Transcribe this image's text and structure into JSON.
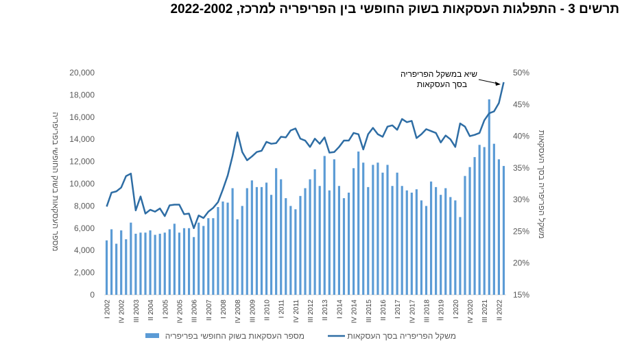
{
  "title": "תרשים 3 - התפלגות העסקאות בשוק החופשי בין הפריפריה למרכז, 2022-2002",
  "colors": {
    "bars": "#5b9bd5",
    "line": "#2e6da4",
    "axis_text": "#595959",
    "axis_line": "#d9d9d9"
  },
  "chart_data": {
    "type": "bar+line",
    "title": "תרשים 3 - התפלגות העסקאות בשוק החופשי בין הפריפריה למרכז, 2022-2002",
    "x_tick_labels": [
      "I 2002",
      "IV 2002",
      "III 2003",
      "II 2004",
      "I 2005",
      "IV 2005",
      "III 2006",
      "II 2007",
      "I 2008",
      "IV 2008",
      "III 2009",
      "II 2010",
      "I 2011",
      "IV 2011",
      "III 2012",
      "II 2013",
      "I 2014",
      "IV 2014",
      "III 2015",
      "II 2016",
      "I 2017",
      "IV 2017",
      "III 2018",
      "II 2019",
      "I 2020",
      "IV 2020",
      "III 2021",
      "II 2022"
    ],
    "y_left": {
      "label": "מספר העסקאות בשוק החופשי בפריפריה",
      "min": 0,
      "max": 20000,
      "ticks": [
        "0",
        "2,000",
        "4,000",
        "6,000",
        "8,000",
        "10,000",
        "12,000",
        "14,000",
        "16,000",
        "18,000",
        "20,000"
      ]
    },
    "y_right": {
      "label": "משקל הפריפריה בסך העסקאות",
      "min": 15,
      "max": 50,
      "ticks": [
        "15%",
        "20%",
        "25%",
        "30%",
        "35%",
        "40%",
        "45%",
        "50%"
      ]
    },
    "series": [
      {
        "name": "מספר העסקאות בשוק החופשי בפריפריה",
        "type": "bar",
        "axis": "left",
        "values": [
          4900,
          5900,
          4600,
          5800,
          5000,
          6500,
          5500,
          5600,
          5600,
          5800,
          5400,
          5500,
          5600,
          5900,
          6400,
          5600,
          6000,
          6000,
          5200,
          6500,
          6200,
          6900,
          6900,
          7900,
          8400,
          8300,
          9600,
          6800,
          8000,
          9600,
          10300,
          9700,
          9700,
          10100,
          9000,
          11400,
          10400,
          8700,
          8000,
          7700,
          8900,
          9600,
          10400,
          11300,
          9800,
          12500,
          9400,
          12200,
          9800,
          8700,
          9200,
          11400,
          12900,
          11900,
          9700,
          11700,
          11900,
          11000,
          11700,
          9800,
          11000,
          9800,
          9400,
          9200,
          9500,
          8500,
          8000,
          10200,
          9700,
          9000,
          9600,
          8800,
          8500,
          7000,
          10700,
          11500,
          12400,
          13500,
          13300,
          17600,
          13600,
          12200,
          11600
        ]
      },
      {
        "name": "משקל הפריפריה בסך העסקאות",
        "type": "line",
        "axis": "right",
        "values": [
          28.9,
          31.1,
          31.3,
          31.9,
          33.7,
          34.1,
          28.3,
          30.5,
          27.8,
          28.4,
          28.1,
          28.6,
          27.4,
          29.1,
          29.2,
          29.2,
          27.7,
          27.8,
          25.5,
          27.5,
          27.1,
          28.1,
          28.7,
          29.6,
          31.6,
          33.8,
          36.9,
          40.6,
          37.5,
          36.2,
          36.8,
          37.5,
          37.7,
          39.1,
          38.8,
          38.9,
          39.9,
          39.8,
          40.9,
          41.2,
          39.6,
          39.3,
          38.3,
          39.6,
          38.8,
          39.8,
          37.4,
          37.5,
          38.3,
          39.3,
          39.3,
          40.5,
          40.3,
          37.9,
          40.3,
          41.3,
          40.3,
          39.9,
          41.5,
          41.7,
          41.0,
          42.7,
          42.2,
          42.4,
          39.7,
          40.3,
          41.1,
          40.8,
          40.5,
          39.0,
          40.1,
          39.5,
          38.3,
          42.0,
          41.5,
          40.0,
          40.2,
          40.5,
          42.5,
          43.6,
          43.9,
          45.2,
          48.5
        ]
      }
    ],
    "annotation": "שיא במשקל הפריפריה בסך העסקאות",
    "legend": {
      "placement": "bottom",
      "items": [
        "מספר העסקאות בשוק החופשי בפריפריה",
        "משקל הפריפריה בסך העסקאות"
      ]
    }
  }
}
